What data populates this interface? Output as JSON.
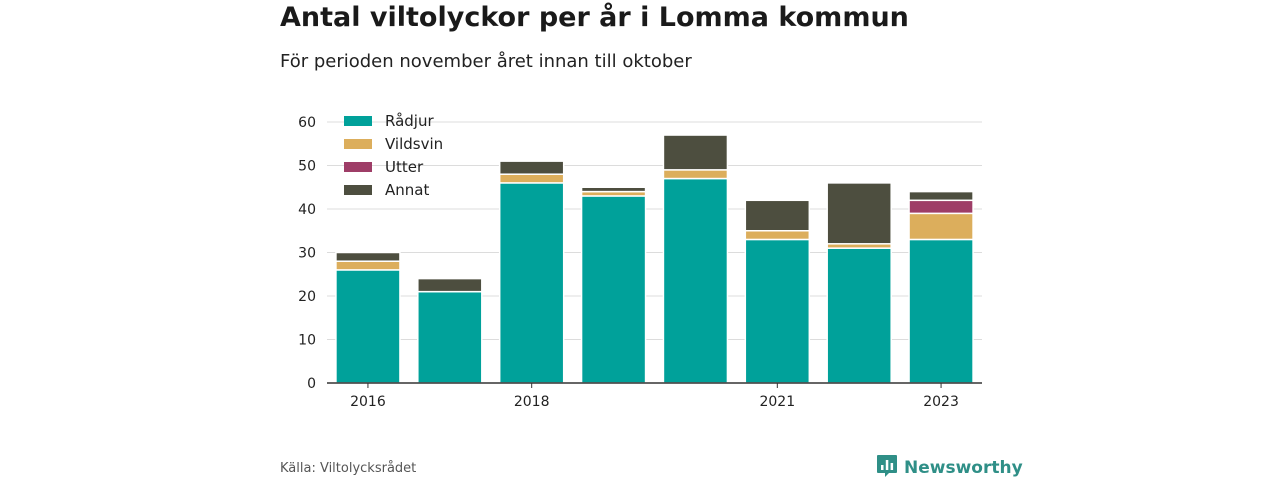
{
  "header": {
    "title": "Antal viltolyckor per år i Lomma kommun",
    "subtitle": "För perioden november året innan till oktober"
  },
  "footer": {
    "source": "Källa: Viltolycksrådet",
    "brand": "Newsworthy",
    "brand_icon": "bar-chart-logo-icon"
  },
  "colors": {
    "Rådjur": "#00a19a",
    "Vildsvin": "#dcae5c",
    "Utter": "#9e3d67",
    "Annat": "#4d4e3f",
    "grid": "#dcdcdc",
    "axis": "#333333",
    "brand": "#2f8f87"
  },
  "chart_data": {
    "type": "bar",
    "stacked": true,
    "categories": [
      "2016",
      "2017",
      "2018",
      "2019",
      "2020",
      "2021",
      "2022",
      "2023"
    ],
    "x_tick_labels": [
      "2016",
      "",
      "2018",
      "",
      "",
      "2021",
      "",
      "2023"
    ],
    "series": [
      {
        "name": "Rådjur",
        "values": [
          26,
          21,
          46,
          43,
          47,
          33,
          31,
          33
        ]
      },
      {
        "name": "Vildsvin",
        "values": [
          2,
          0,
          2,
          1,
          2,
          2,
          1,
          6
        ]
      },
      {
        "name": "Utter",
        "values": [
          0,
          0,
          0,
          0,
          0,
          0,
          0,
          3
        ]
      },
      {
        "name": "Annat",
        "values": [
          2,
          3,
          3,
          1,
          8,
          7,
          14,
          2
        ]
      }
    ],
    "ylim": [
      0,
      60
    ],
    "yticks": [
      0,
      10,
      20,
      30,
      40,
      50,
      60
    ],
    "grid": true,
    "legend_position": "top-left"
  }
}
